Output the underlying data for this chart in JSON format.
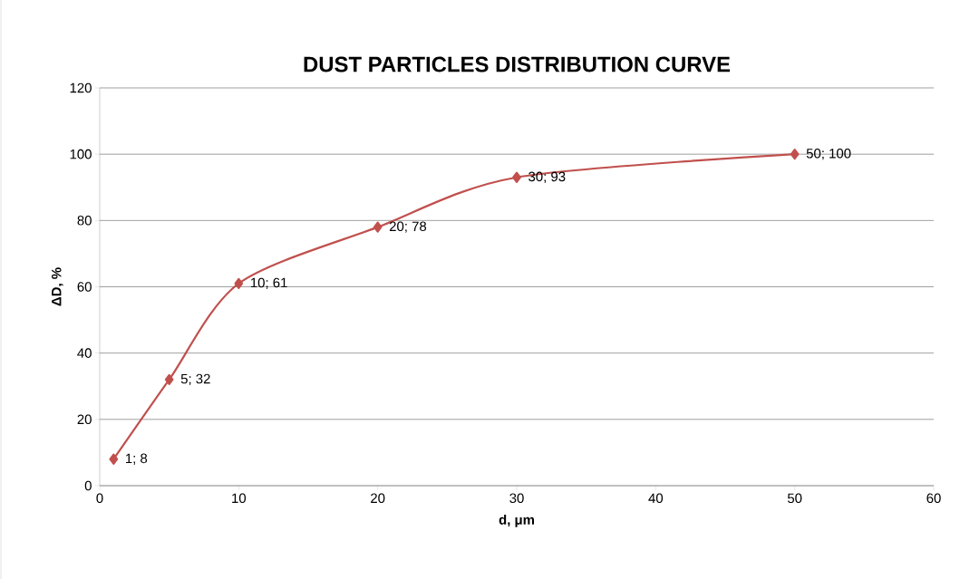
{
  "chart_data": {
    "type": "line",
    "title": "DUST PARTICLES DISTRIBUTION CURVE",
    "xlabel": "d, μm",
    "ylabel": "ΔD, %",
    "x": [
      1,
      5,
      10,
      20,
      30,
      50
    ],
    "series": [
      {
        "color": "#c0504d",
        "values": [
          8,
          32,
          61,
          78,
          93,
          100
        ],
        "value_labels": [
          "1; 8",
          "5; 32",
          "10; 61",
          "20; 78",
          "30; 93",
          "50; 100"
        ]
      }
    ],
    "xlim": [
      0,
      60
    ],
    "xticks": [
      0,
      10,
      20,
      30,
      40,
      50,
      60
    ],
    "ylim": [
      0,
      120
    ],
    "yticks": [
      0,
      20,
      40,
      60,
      80,
      100,
      120
    ],
    "grid": "y",
    "marker": "diamond",
    "line_style": "solid"
  }
}
